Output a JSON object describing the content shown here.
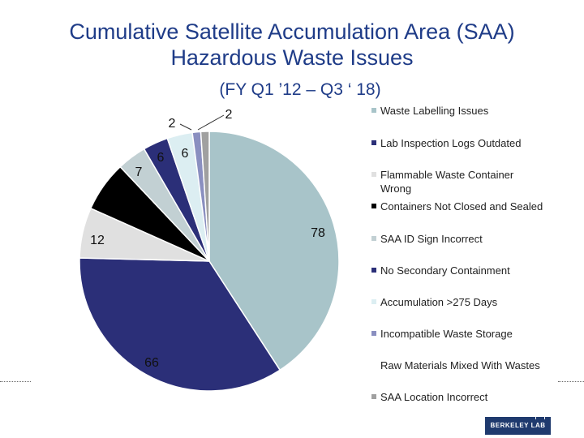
{
  "title_line1": "Cumulative Satellite Accumulation Area (SAA)",
  "title_line2": "Hazardous Waste Issues",
  "subtitle": "(FY Q1 ’12 – Q3 ‘ 18)",
  "logo_text": "BERKELEY LAB",
  "chart_data": {
    "type": "pie",
    "title": "Cumulative Satellite Accumulation Area (SAA) Hazardous Waste Issues",
    "subtitle": "(FY Q1 ’12 – Q3 ‘ 18)",
    "legend_position": "right",
    "categories": [
      "Waste Labelling Issues",
      "Lab Inspection Logs Outdated",
      "Flammable Waste Container Wrong",
      "Containers Not Closed and Sealed",
      "SAA ID Sign Incorrect",
      "No Secondary Containment",
      "Accumulation >275 Days",
      "Incompatible Waste Storage",
      "Raw Materials Mixed With Wastes",
      "SAA Location Incorrect"
    ],
    "values": [
      78,
      66,
      12,
      12,
      7,
      6,
      6,
      2,
      0,
      2
    ],
    "data_labels": [
      "78",
      "66",
      "12",
      "",
      "7",
      "6",
      "6",
      "2",
      "",
      "2"
    ],
    "colors": [
      "#a8c4c9",
      "#2b2f78",
      "#e0e0e0",
      "#000000",
      "#c2d0d3",
      "#2b2f78",
      "#dceef2",
      "#8a8fc0",
      "#ffffff",
      "#a0a0a0"
    ]
  }
}
